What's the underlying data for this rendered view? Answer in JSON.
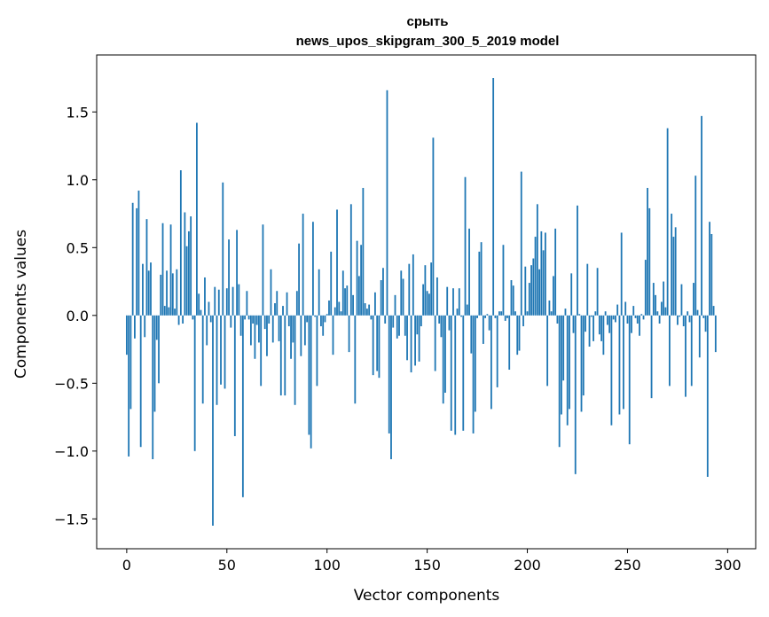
{
  "chart_data": {
    "type": "bar",
    "title": "срыть",
    "subtitle": "news_upos_skipgram_300_5_2019 model",
    "xlabel": "Vector components",
    "ylabel": "Components values",
    "xlim": [
      -15,
      314
    ],
    "ylim": [
      -1.72,
      1.92
    ],
    "xticks": [
      0,
      50,
      100,
      150,
      200,
      250,
      300
    ],
    "yticks": [
      -1.5,
      -1.0,
      -0.5,
      0.0,
      0.5,
      1.0,
      1.5
    ],
    "ytick_labels": [
      "−1.5",
      "−1.0",
      "−0.5",
      "0.0",
      "0.5",
      "1.0",
      "1.5"
    ],
    "bar_color": "#1f77b4",
    "values": [
      -0.29,
      -1.04,
      -0.69,
      0.83,
      -0.17,
      0.79,
      0.92,
      -0.97,
      0.38,
      -0.16,
      0.71,
      0.33,
      0.39,
      -1.06,
      -0.71,
      -0.18,
      -0.5,
      0.3,
      0.68,
      0.07,
      0.33,
      0.06,
      0.67,
      0.31,
      0.05,
      0.34,
      -0.07,
      1.07,
      -0.06,
      0.76,
      0.51,
      0.62,
      0.73,
      -0.03,
      -1.0,
      1.42,
      0.16,
      0.04,
      -0.65,
      0.28,
      -0.22,
      0.1,
      -0.05,
      -1.55,
      0.21,
      -0.66,
      0.19,
      -0.51,
      0.98,
      -0.54,
      0.2,
      0.56,
      -0.09,
      0.21,
      -0.89,
      0.63,
      0.23,
      -0.15,
      -1.34,
      -0.03,
      0.18,
      -0.03,
      -0.22,
      -0.06,
      -0.32,
      -0.07,
      -0.2,
      -0.52,
      0.67,
      -0.1,
      -0.3,
      -0.06,
      0.34,
      -0.2,
      0.09,
      0.18,
      -0.19,
      -0.59,
      0.07,
      -0.59,
      0.17,
      -0.08,
      -0.32,
      -0.2,
      -0.66,
      0.18,
      0.53,
      -0.3,
      0.75,
      -0.22,
      -0.05,
      -0.88,
      -0.98,
      0.69,
      -0.01,
      -0.52,
      0.34,
      -0.08,
      -0.15,
      -0.05,
      0.01,
      0.11,
      0.47,
      -0.29,
      0.06,
      0.78,
      0.1,
      0.03,
      0.33,
      0.2,
      0.22,
      -0.27,
      0.82,
      0.15,
      -0.65,
      0.55,
      0.29,
      0.52,
      0.94,
      0.09,
      0.05,
      0.08,
      -0.03,
      -0.44,
      0.17,
      -0.41,
      -0.46,
      0.26,
      0.35,
      -0.06,
      1.66,
      -0.87,
      -1.06,
      -0.09,
      0.15,
      -0.17,
      -0.15,
      0.33,
      0.27,
      -0.15,
      -0.33,
      0.38,
      -0.42,
      0.45,
      -0.37,
      -0.14,
      -0.34,
      -0.08,
      0.23,
      0.37,
      0.18,
      0.16,
      0.39,
      1.31,
      -0.41,
      0.28,
      -0.06,
      -0.16,
      -0.65,
      -0.57,
      0.21,
      -0.11,
      -0.85,
      0.2,
      -0.88,
      0.05,
      0.2,
      -0.01,
      -0.85,
      1.02,
      0.08,
      0.64,
      -0.28,
      -0.87,
      -0.71,
      -0.02,
      0.47,
      0.54,
      -0.21,
      -0.02,
      0.01,
      -0.11,
      -0.69,
      1.75,
      -0.02,
      -0.53,
      0.03,
      0.03,
      0.52,
      -0.04,
      -0.02,
      -0.4,
      0.26,
      0.22,
      0.03,
      -0.29,
      -0.26,
      1.06,
      -0.08,
      0.36,
      0.03,
      0.24,
      0.37,
      0.42,
      0.58,
      0.82,
      0.34,
      0.62,
      0.48,
      0.61,
      -0.52,
      0.11,
      0.03,
      0.29,
      0.64,
      -0.06,
      -0.97,
      -0.73,
      -0.48,
      0.05,
      -0.81,
      -0.69,
      0.31,
      -0.13,
      -1.17,
      0.81,
      0.01,
      -0.71,
      -0.59,
      -0.12,
      0.38,
      -0.23,
      -0.01,
      -0.19,
      0.03,
      0.35,
      -0.14,
      -0.19,
      -0.29,
      0.03,
      -0.07,
      -0.13,
      -0.81,
      -0.03,
      -0.05,
      0.08,
      -0.73,
      0.61,
      -0.69,
      0.1,
      -0.06,
      -0.95,
      -0.13,
      0.07,
      -0.02,
      -0.06,
      -0.15,
      0.01,
      -0.03,
      0.41,
      0.94,
      0.79,
      -0.61,
      0.24,
      0.15,
      0.03,
      -0.06,
      0.1,
      0.25,
      0.06,
      1.38,
      -0.52,
      0.75,
      0.58,
      0.65,
      -0.07,
      -0.01,
      0.23,
      -0.08,
      -0.6,
      0.03,
      -0.05,
      -0.52,
      0.24,
      1.03,
      0.04,
      -0.31,
      1.47,
      -0.02,
      -0.12,
      -1.19,
      0.69,
      0.6,
      0.07,
      -0.27
    ]
  }
}
